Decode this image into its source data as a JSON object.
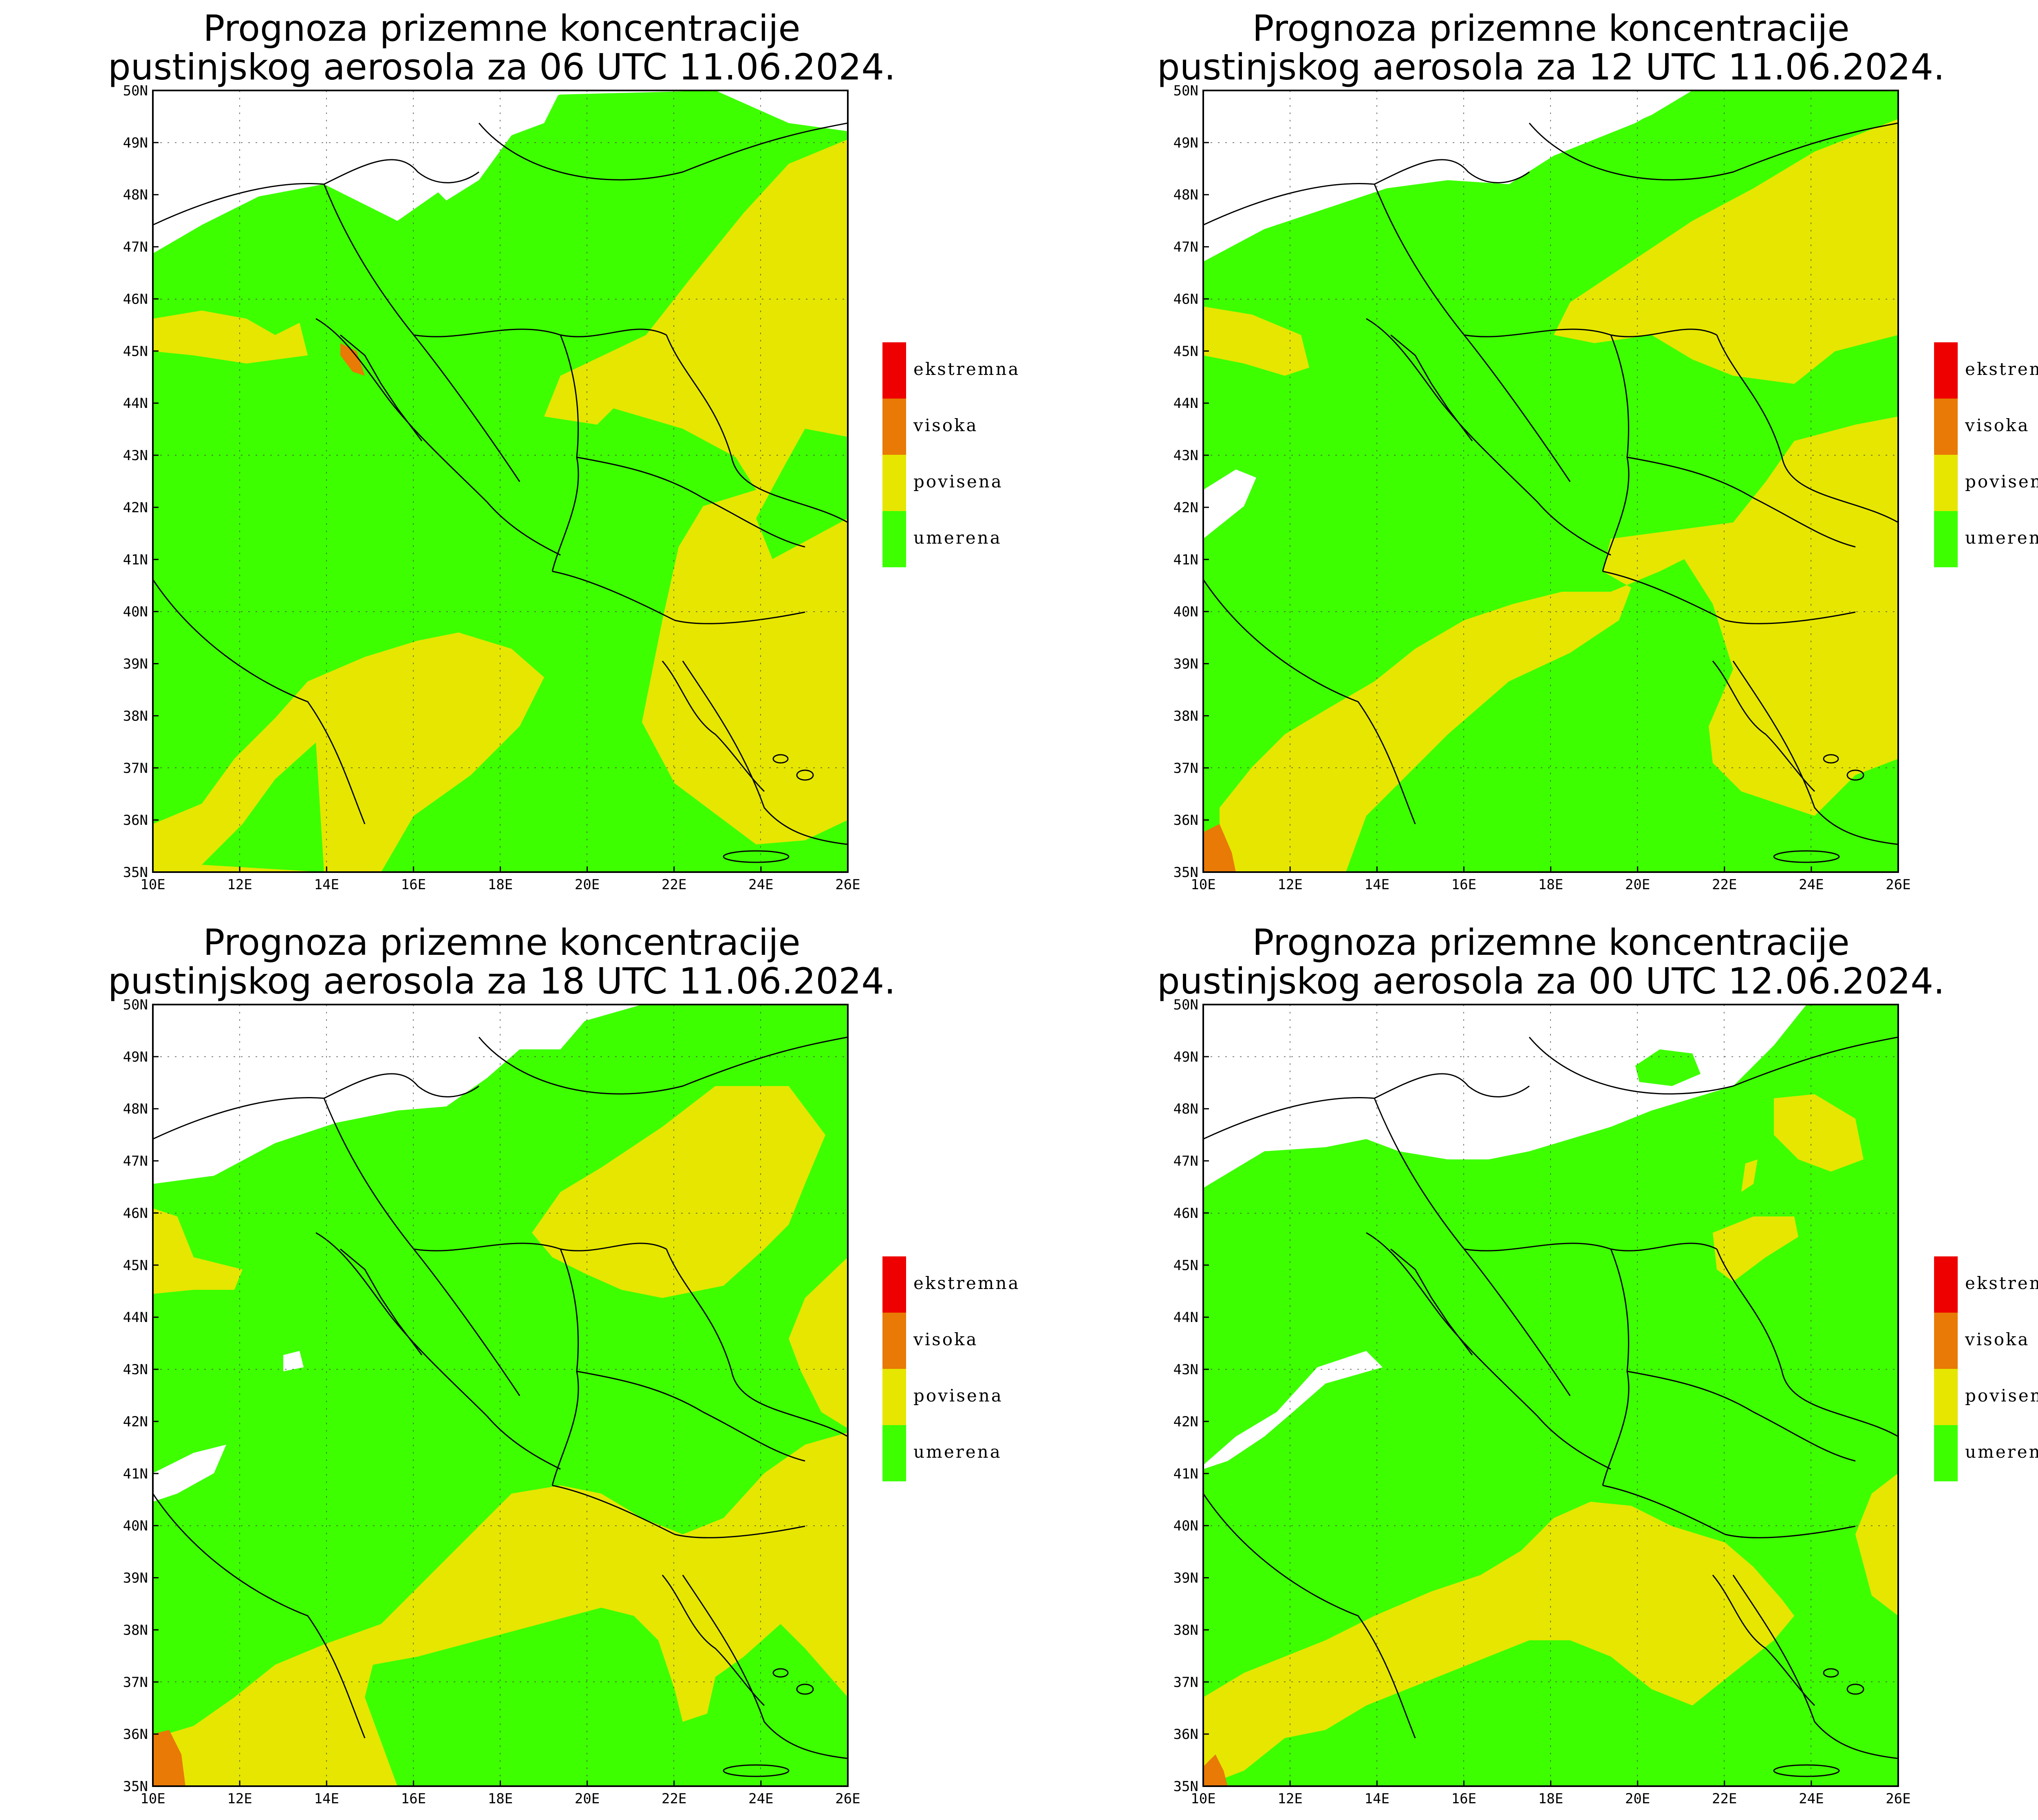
{
  "panels": [
    {
      "title_line1": "Prognoza prizemne koncentracije",
      "title_line2": "pustinjskog aerosola za 06 UTC 11.06.2024."
    },
    {
      "title_line1": "Prognoza prizemne koncentracije",
      "title_line2": "pustinjskog aerosola za 12 UTC 11.06.2024."
    },
    {
      "title_line1": "Prognoza prizemne koncentracije",
      "title_line2": "pustinjskog aerosola za 18 UTC 11.06.2024."
    },
    {
      "title_line1": "Prognoza prizemne koncentracije",
      "title_line2": "pustinjskog aerosola za 00 UTC 12.06.2024."
    }
  ],
  "axes": {
    "lat_ticks": [
      "50N",
      "49N",
      "48N",
      "47N",
      "46N",
      "45N",
      "44N",
      "43N",
      "42N",
      "41N",
      "40N",
      "39N",
      "38N",
      "37N",
      "36N",
      "35N"
    ],
    "lon_ticks": [
      "10E",
      "12E",
      "14E",
      "16E",
      "18E",
      "20E",
      "22E",
      "24E",
      "26E"
    ],
    "lat_range": [
      35,
      50
    ],
    "lon_range": [
      10,
      26
    ]
  },
  "legend": [
    {
      "label": "ekstremna",
      "color": "#ee0000"
    },
    {
      "label": "visoka",
      "color": "#e87a05"
    },
    {
      "label": "povisena",
      "color": "#e6e600"
    },
    {
      "label": "umerena",
      "color": "#3dff00"
    }
  ],
  "colors": {
    "umerena": "#3dff00",
    "povisena": "#e6e600",
    "visoka": "#e87a05",
    "ekstremna": "#ee0000",
    "background": "#ffffff"
  }
}
